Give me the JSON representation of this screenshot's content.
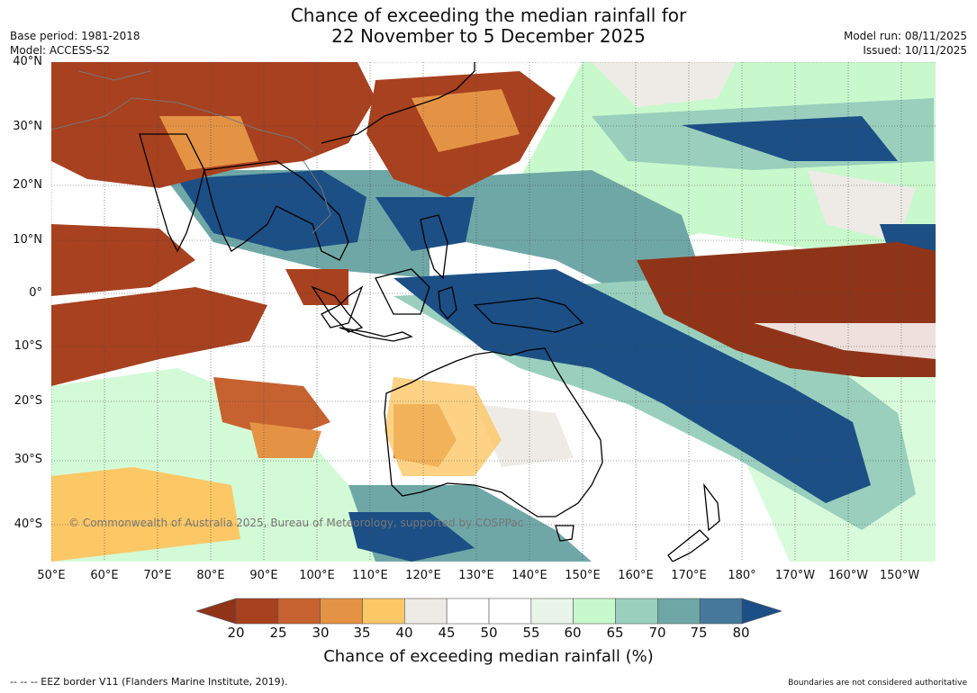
{
  "title_line1": "Chance of exceeding the median rainfall for",
  "title_line2": "22 November to 5 December 2025",
  "base_period": "Base period: 1981-2018",
  "model": "Model: ACCESS-S2",
  "model_run": "Model run: 08/11/2025",
  "issued": "Issued: 10/11/2025",
  "copyright": "© Commonwealth of Australia 2025, Bureau of Meteorology, supported by COSPPac",
  "lat_labels": [
    "40°N",
    "30°N",
    "20°N",
    "10°N",
    "0°",
    "10°S",
    "20°S",
    "30°S",
    "40°S"
  ],
  "lon_labels": [
    "50°E",
    "60°E",
    "70°E",
    "80°E",
    "90°E",
    "100°E",
    "110°E",
    "120°E",
    "130°E",
    "140°E",
    "150°E",
    "160°E",
    "170°E",
    "180°",
    "170°W",
    "160°W",
    "150°W"
  ],
  "colorbar": {
    "ticks": [
      "20",
      "25",
      "30",
      "35",
      "40",
      "45",
      "50",
      "55",
      "60",
      "65",
      "70",
      "75",
      "80"
    ],
    "colors": [
      "#8f3419",
      "#a8411f",
      "#c66230",
      "#e49345",
      "#fcc765",
      "#eeebe6",
      "#ffffff",
      "#ffffff",
      "#e9f5ea",
      "#c8f9cc",
      "#9acfbd",
      "#6fa7a7",
      "#45789a",
      "#1b4f86"
    ],
    "label": "Chance of exceeding median rainfall (%)"
  },
  "legend_eez": "--  --  -- EEZ border V11 (Flanders Marine Institute, 2019).",
  "disclaimer": "Boundaries are not considered authoritative"
}
